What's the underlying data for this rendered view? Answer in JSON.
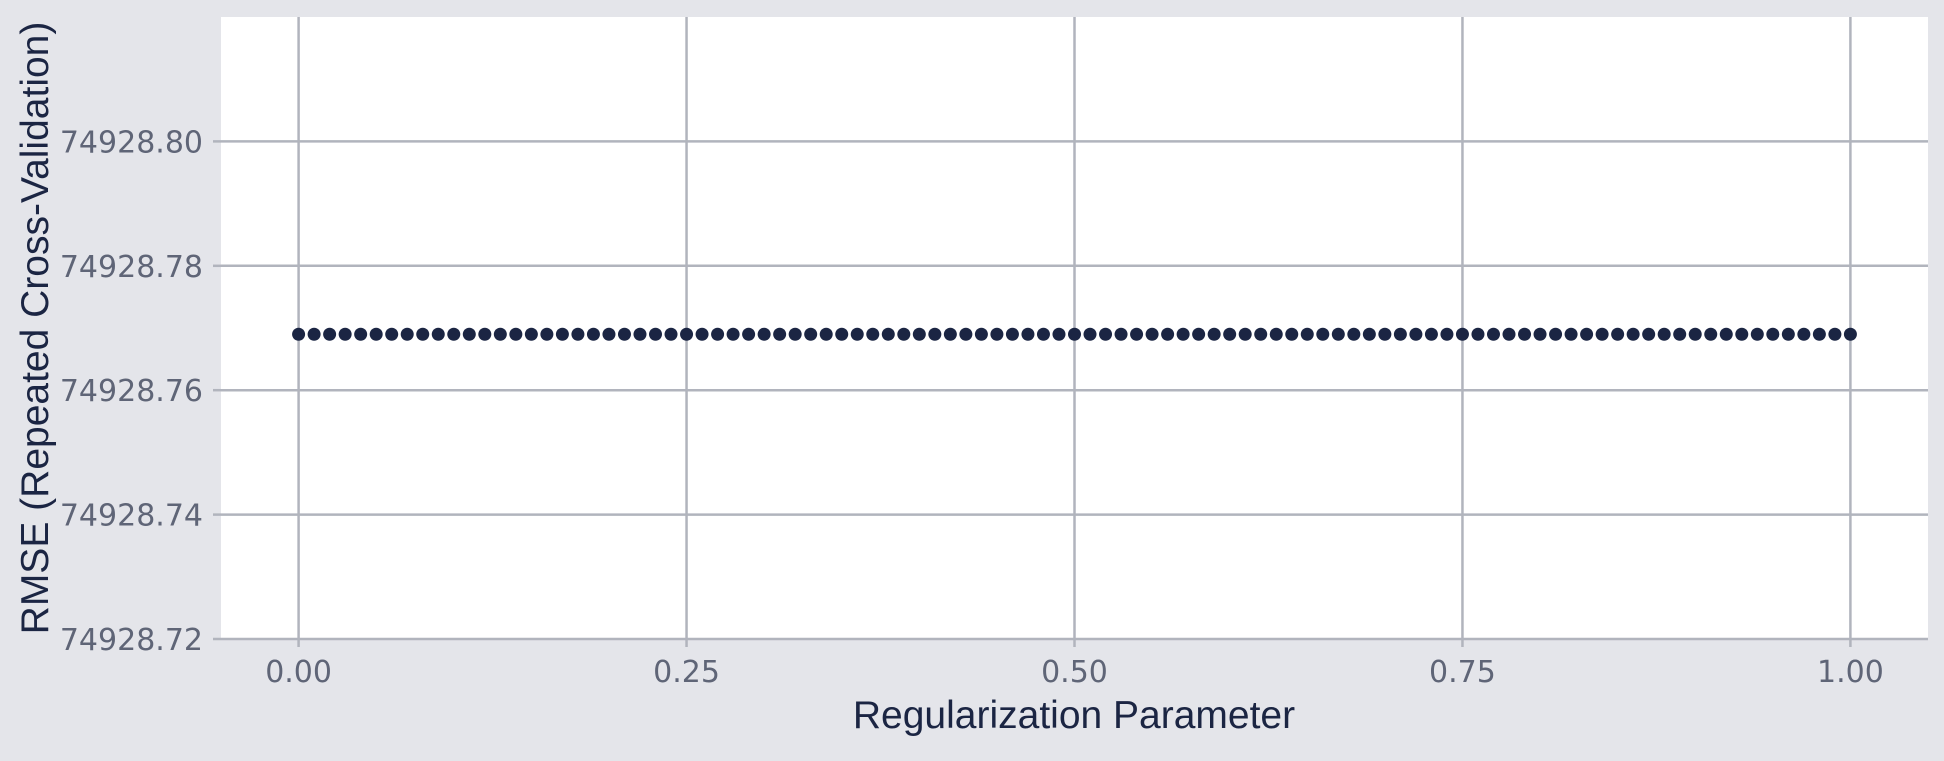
{
  "chart_data": {
    "type": "line",
    "title": "",
    "xlabel": "Regularization Parameter",
    "ylabel": "RMSE (Repeated Cross-Validation)",
    "xlim": [
      -0.05,
      1.05
    ],
    "ylim": [
      74928.72,
      74928.82
    ],
    "x_ticks": [
      0.0,
      0.25,
      0.5,
      0.75,
      1.0
    ],
    "x_tick_labels": [
      "0.00",
      "0.25",
      "0.50",
      "0.75",
      "1.00"
    ],
    "y_ticks": [
      74928.72,
      74928.74,
      74928.76,
      74928.78,
      74928.8
    ],
    "y_tick_labels": [
      "74928.72",
      "74928.74",
      "74928.76",
      "74928.78",
      "74928.80"
    ],
    "grid": true,
    "series": [
      {
        "x_start": 0.0,
        "x_end": 1.0,
        "x_step": 0.01,
        "y_constant": 74928.769,
        "marker": "circle",
        "color": "#1b2543"
      }
    ]
  }
}
